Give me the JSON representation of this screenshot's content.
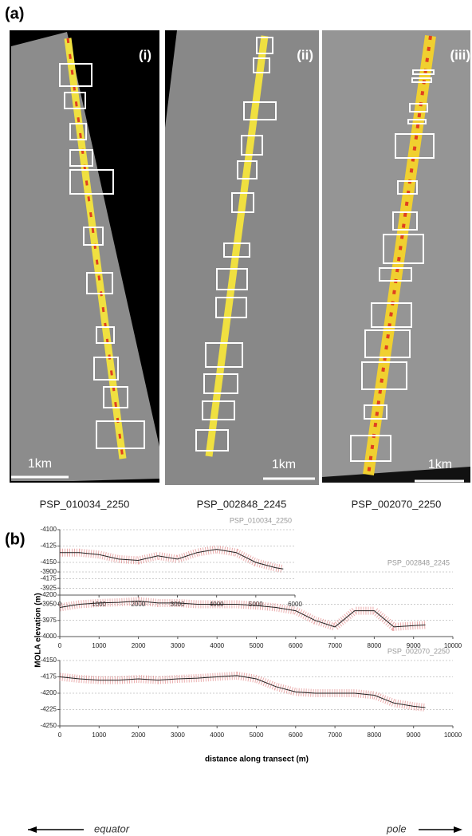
{
  "panel_a": {
    "label": "(a)",
    "images": [
      {
        "label": "(i)",
        "scale": "1km",
        "caption": "PSP_010034_2250"
      },
      {
        "label": "(ii)",
        "scale": "1km",
        "caption": "PSP_002848_2245"
      },
      {
        "label": "(iii)",
        "scale": "1km",
        "caption": "PSP_002070_2250"
      }
    ]
  },
  "panel_b": {
    "label": "(b)",
    "ylabel": "MOLA elevation (m)",
    "xlabel": "distance along transect (m)",
    "left_arrow": "equator",
    "right_arrow": "pole"
  },
  "chart_data": [
    {
      "type": "line",
      "title": "PSP_010034_2250",
      "color": "#222222",
      "error_color": "#d96a6a",
      "x": [
        0,
        500,
        1000,
        1500,
        2000,
        2500,
        3000,
        3500,
        4000,
        4500,
        5000,
        5500,
        5700
      ],
      "values": [
        -4135,
        -4135,
        -4138,
        -4145,
        -4147,
        -4140,
        -4145,
        -4135,
        -4130,
        -4135,
        -4150,
        -4158,
        -4160
      ],
      "xlim": [
        0,
        6000
      ],
      "xticks": [
        0,
        1000,
        2000,
        3000,
        4000,
        5000,
        6000
      ],
      "ylim": [
        -4200,
        -4100
      ],
      "yticks": [
        -4100,
        -4125,
        -4150,
        -4175,
        -4200
      ],
      "grid": true
    },
    {
      "type": "line",
      "title": "PSP_002848_2245",
      "color": "#222222",
      "error_color": "#d96a6a",
      "x": [
        0,
        500,
        1000,
        1500,
        2000,
        2500,
        3000,
        3500,
        4000,
        4500,
        5000,
        5500,
        6000,
        6500,
        7000,
        7500,
        8000,
        8500,
        9000,
        9300
      ],
      "values": [
        -3955,
        -3950,
        -3948,
        -3947,
        -3945,
        -3948,
        -3948,
        -3950,
        -3950,
        -3950,
        -3952,
        -3955,
        -3960,
        -3975,
        -3985,
        -3960,
        -3960,
        -3985,
        -3983,
        -3982
      ],
      "xlim": [
        0,
        10000
      ],
      "xticks": [
        0,
        1000,
        2000,
        3000,
        4000,
        5000,
        6000,
        7000,
        8000,
        9000,
        10000
      ],
      "ylim": [
        -4000,
        -3900
      ],
      "yticks": [
        -3900,
        -3925,
        -3950,
        -3975,
        -4000
      ],
      "grid": true
    },
    {
      "type": "line",
      "title": "PSP_002070_2250",
      "color": "#222222",
      "error_color": "#d96a6a",
      "x": [
        0,
        500,
        1000,
        1500,
        2000,
        2500,
        3000,
        3500,
        4000,
        4500,
        5000,
        5500,
        6000,
        6500,
        7000,
        7500,
        8000,
        8500,
        9000,
        9300
      ],
      "values": [
        -4175,
        -4178,
        -4180,
        -4180,
        -4178,
        -4180,
        -4178,
        -4177,
        -4175,
        -4173,
        -4178,
        -4190,
        -4198,
        -4200,
        -4200,
        -4200,
        -4203,
        -4215,
        -4220,
        -4222
      ],
      "xlim": [
        0,
        10000
      ],
      "xticks": [
        0,
        1000,
        2000,
        3000,
        4000,
        5000,
        6000,
        7000,
        8000,
        9000,
        10000
      ],
      "ylim": [
        -4250,
        -4150
      ],
      "yticks": [
        -4150,
        -4175,
        -4200,
        -4225,
        -4250
      ],
      "grid": true
    }
  ]
}
